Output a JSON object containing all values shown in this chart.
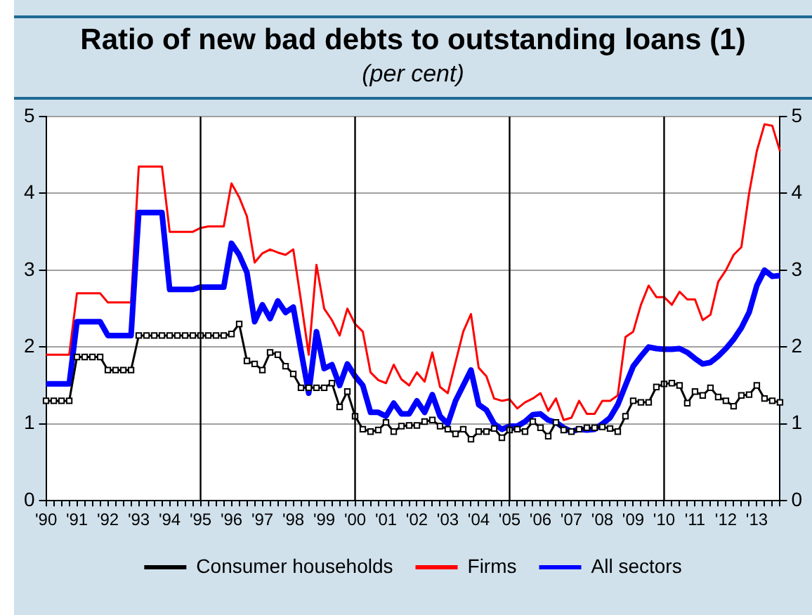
{
  "chart_data": {
    "type": "line",
    "title": "Ratio of new bad debts to outstanding loans (1)",
    "subtitle": "(per cent)",
    "categories": [
      "'90",
      null,
      null,
      null,
      "'91",
      null,
      null,
      null,
      "'92",
      null,
      null,
      null,
      "'93",
      null,
      null,
      null,
      "'94",
      null,
      null,
      null,
      "'95",
      null,
      null,
      null,
      "'96",
      null,
      null,
      null,
      "'97",
      null,
      null,
      null,
      "'98",
      null,
      null,
      null,
      "'99",
      null,
      null,
      null,
      "'00",
      null,
      null,
      null,
      "'01",
      null,
      null,
      null,
      "'02",
      null,
      null,
      null,
      "'03",
      null,
      null,
      null,
      "'04",
      null,
      null,
      null,
      "'05",
      null,
      null,
      null,
      "'06",
      null,
      null,
      null,
      "'07",
      null,
      null,
      null,
      "'08",
      null,
      null,
      null,
      "'09",
      null,
      null,
      null,
      "'10",
      null,
      null,
      null,
      "'11",
      null,
      null,
      null,
      "'12",
      null,
      null,
      null,
      "'13",
      null,
      null,
      null
    ],
    "series": [
      {
        "name": "Consumer households",
        "color": "#000000",
        "marker": "square",
        "values": [
          1.3,
          1.3,
          1.3,
          1.3,
          1.87,
          1.87,
          1.87,
          1.87,
          1.7,
          1.7,
          1.7,
          1.7,
          2.15,
          2.15,
          2.15,
          2.15,
          2.15,
          2.15,
          2.15,
          2.15,
          2.15,
          2.15,
          2.15,
          2.15,
          2.17,
          2.3,
          1.82,
          1.78,
          1.7,
          1.93,
          1.9,
          1.75,
          1.65,
          1.47,
          1.47,
          1.47,
          1.47,
          1.53,
          1.22,
          1.42,
          1.1,
          0.93,
          0.9,
          0.92,
          1.02,
          0.9,
          0.97,
          0.98,
          0.98,
          1.03,
          1.05,
          0.97,
          0.93,
          0.87,
          0.93,
          0.8,
          0.9,
          0.9,
          0.94,
          0.82,
          0.92,
          0.93,
          0.9,
          1.03,
          0.95,
          0.84,
          1.02,
          0.92,
          0.9,
          0.93,
          0.95,
          0.95,
          0.96,
          0.94,
          0.9,
          1.1,
          1.3,
          1.28,
          1.28,
          1.48,
          1.52,
          1.53,
          1.5,
          1.27,
          1.42,
          1.37,
          1.47,
          1.35,
          1.3,
          1.23,
          1.37,
          1.38,
          1.5,
          1.33,
          1.3,
          1.28
        ]
      },
      {
        "name": "Firms",
        "color": "#ff0000",
        "marker": "none",
        "values": [
          1.9,
          1.9,
          1.9,
          1.9,
          2.7,
          2.7,
          2.7,
          2.7,
          2.58,
          2.58,
          2.58,
          2.58,
          4.35,
          4.35,
          4.35,
          4.35,
          3.5,
          3.5,
          3.5,
          3.5,
          3.55,
          3.57,
          3.57,
          3.57,
          4.13,
          3.95,
          3.7,
          3.1,
          3.22,
          3.27,
          3.23,
          3.2,
          3.27,
          2.6,
          1.9,
          3.07,
          2.5,
          2.35,
          2.15,
          2.5,
          2.3,
          2.2,
          1.67,
          1.57,
          1.53,
          1.77,
          1.58,
          1.5,
          1.67,
          1.55,
          1.93,
          1.48,
          1.4,
          1.8,
          2.2,
          2.43,
          1.73,
          1.62,
          1.33,
          1.3,
          1.32,
          1.2,
          1.28,
          1.33,
          1.4,
          1.17,
          1.33,
          1.05,
          1.08,
          1.3,
          1.13,
          1.13,
          1.3,
          1.3,
          1.37,
          2.13,
          2.2,
          2.55,
          2.8,
          2.65,
          2.65,
          2.55,
          2.72,
          2.62,
          2.62,
          2.35,
          2.42,
          2.85,
          3.0,
          3.2,
          3.3,
          4.0,
          4.55,
          4.9,
          4.88,
          4.55
        ]
      },
      {
        "name": "All sectors",
        "color": "#0000ff",
        "marker": "none",
        "values": [
          1.52,
          1.52,
          1.52,
          1.52,
          2.33,
          2.33,
          2.33,
          2.33,
          2.15,
          2.15,
          2.15,
          2.15,
          3.75,
          3.75,
          3.75,
          3.75,
          2.75,
          2.75,
          2.75,
          2.75,
          2.78,
          2.78,
          2.78,
          2.78,
          3.35,
          3.2,
          2.97,
          2.33,
          2.55,
          2.37,
          2.6,
          2.45,
          2.52,
          1.95,
          1.4,
          2.2,
          1.72,
          1.77,
          1.5,
          1.78,
          1.62,
          1.5,
          1.15,
          1.15,
          1.1,
          1.27,
          1.13,
          1.13,
          1.3,
          1.15,
          1.38,
          1.1,
          1.0,
          1.3,
          1.5,
          1.7,
          1.25,
          1.18,
          1.0,
          0.93,
          0.97,
          0.97,
          1.03,
          1.12,
          1.13,
          1.05,
          1.02,
          0.95,
          0.9,
          0.93,
          0.92,
          0.93,
          1.0,
          1.08,
          1.25,
          1.5,
          1.75,
          1.88,
          2.0,
          1.98,
          1.97,
          1.97,
          1.98,
          1.93,
          1.85,
          1.78,
          1.8,
          1.88,
          1.98,
          2.1,
          2.25,
          2.45,
          2.8,
          3.0,
          2.92,
          2.93
        ]
      }
    ],
    "ylim": [
      0,
      5
    ],
    "yticks": [
      0,
      1,
      2,
      3,
      4,
      5
    ],
    "y2lim": [
      0,
      5
    ],
    "y2ticks": [
      0,
      1,
      2,
      3,
      4,
      5
    ],
    "ref_lines": [
      {
        "axis": "x",
        "value": "'95",
        "color": "#000000"
      },
      {
        "axis": "x",
        "value": "'00",
        "color": "#000000"
      },
      {
        "axis": "x",
        "value": "'05",
        "color": "#000000"
      },
      {
        "axis": "x",
        "value": "'10",
        "color": "#000000"
      }
    ],
    "grid": "y",
    "legend": "bottom"
  }
}
